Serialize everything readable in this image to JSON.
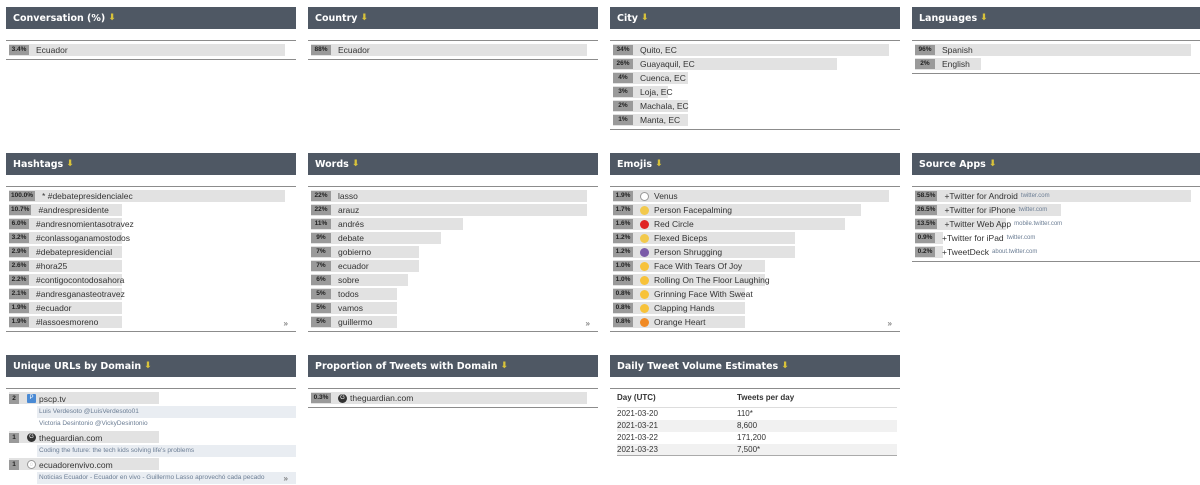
{
  "panels": {
    "conversation": {
      "title": "Conversation (%)",
      "rows": [
        {
          "pct": "3.4%",
          "label": "Ecuador",
          "fill": 1.0
        }
      ]
    },
    "country": {
      "title": "Country",
      "rows": [
        {
          "pct": "88%",
          "label": "Ecuador",
          "fill": 1.0
        }
      ]
    },
    "city": {
      "title": "City",
      "rows": [
        {
          "pct": "34%",
          "label": "Quito, EC",
          "fill": 1.0
        },
        {
          "pct": "26%",
          "label": "Guayaquil, EC",
          "fill": 0.81
        },
        {
          "pct": "4%",
          "label": "Cuenca, EC",
          "fill": 0.27
        },
        {
          "pct": "3%",
          "label": "Loja, EC",
          "fill": 0.2
        },
        {
          "pct": "2%",
          "label": "Machala, EC",
          "fill": 0.27
        },
        {
          "pct": "1%",
          "label": "Manta, EC",
          "fill": 0.27
        }
      ]
    },
    "languages": {
      "title": "Languages",
      "rows": [
        {
          "pct": "96%",
          "label": "Spanish",
          "fill": 1.0
        },
        {
          "pct": "2%",
          "label": "English",
          "fill": 0.24
        }
      ]
    },
    "hashtags": {
      "title": "Hashtags",
      "rows": [
        {
          "pct": "100.0%",
          "label": "* #debatepresidencialec",
          "fill": 1.0
        },
        {
          "pct": "10.7%",
          "label": "#andrespresidente",
          "fill": 0.41
        },
        {
          "pct": "6.0%",
          "label": "#andresnomientasotravez",
          "fill": 0.41
        },
        {
          "pct": "3.2%",
          "label": "#conlassoganamostodos",
          "fill": 0.41
        },
        {
          "pct": "2.9%",
          "label": "#debatepresidencial",
          "fill": 0.41
        },
        {
          "pct": "2.6%",
          "label": "#hora25",
          "fill": 0.41
        },
        {
          "pct": "2.2%",
          "label": "#contigocontodosahora",
          "fill": 0.41
        },
        {
          "pct": "2.1%",
          "label": "#andresganasteotravez",
          "fill": 0.41
        },
        {
          "pct": "1.9%",
          "label": "#ecuador",
          "fill": 0.41
        },
        {
          "pct": "1.9%",
          "label": "#lassoesmoreno",
          "fill": 0.41
        }
      ]
    },
    "words": {
      "title": "Words",
      "rows": [
        {
          "pct": "22%",
          "label": "lasso",
          "fill": 1.0
        },
        {
          "pct": "22%",
          "label": "arauz",
          "fill": 1.0
        },
        {
          "pct": "11%",
          "label": "andrés",
          "fill": 0.55
        },
        {
          "pct": "9%",
          "label": "debate",
          "fill": 0.47
        },
        {
          "pct": "7%",
          "label": "gobierno",
          "fill": 0.39
        },
        {
          "pct": "7%",
          "label": "ecuador",
          "fill": 0.39
        },
        {
          "pct": "6%",
          "label": "sobre",
          "fill": 0.35
        },
        {
          "pct": "5%",
          "label": "todos",
          "fill": 0.31
        },
        {
          "pct": "5%",
          "label": "vamos",
          "fill": 0.31
        },
        {
          "pct": "5%",
          "label": "guillermo",
          "fill": 0.31
        }
      ]
    },
    "emojis": {
      "title": "Emojis",
      "rows": [
        {
          "pct": "1.9%",
          "label": "Venus",
          "fill": 1.0,
          "emoji_color": "#ffffff",
          "emoji_glyph": "♀"
        },
        {
          "pct": "1.7%",
          "label": "Person Facepalming",
          "fill": 0.9,
          "emoji_color": "#f2c94c",
          "emoji_glyph": ""
        },
        {
          "pct": "1.6%",
          "label": "Red Circle",
          "fill": 0.84,
          "emoji_color": "#e02424",
          "emoji_glyph": ""
        },
        {
          "pct": "1.2%",
          "label": "Flexed Biceps",
          "fill": 0.66,
          "emoji_color": "#f2c94c",
          "emoji_glyph": ""
        },
        {
          "pct": "1.2%",
          "label": "Person Shrugging",
          "fill": 0.66,
          "emoji_color": "#7a5aa8",
          "emoji_glyph": ""
        },
        {
          "pct": "1.0%",
          "label": "Face With Tears Of Joy",
          "fill": 0.55,
          "emoji_color": "#f7c23a",
          "emoji_glyph": ""
        },
        {
          "pct": "1.0%",
          "label": "Rolling On The Floor Laughing",
          "fill": 0.55,
          "emoji_color": "#f7c23a",
          "emoji_glyph": ""
        },
        {
          "pct": "0.8%",
          "label": "Grinning Face With Sweat",
          "fill": 0.48,
          "emoji_color": "#f7c23a",
          "emoji_glyph": ""
        },
        {
          "pct": "0.8%",
          "label": "Clapping Hands",
          "fill": 0.48,
          "emoji_color": "#f7c23a",
          "emoji_glyph": ""
        },
        {
          "pct": "0.8%",
          "label": "Orange Heart",
          "fill": 0.48,
          "emoji_color": "#f08a24",
          "emoji_glyph": ""
        }
      ]
    },
    "source_apps": {
      "title": "Source Apps",
      "rows": [
        {
          "pct": "58.5%",
          "label": "+Twitter for Android",
          "host": "twitter.com",
          "fill": 1.0
        },
        {
          "pct": "26.5%",
          "label": "+Twitter for iPhone",
          "host": "twitter.com",
          "fill": 0.53
        },
        {
          "pct": "13.5%",
          "label": "+Twitter Web App",
          "host": "mobile.twitter.com",
          "fill": 0.33
        },
        {
          "pct": "0.9%",
          "label": "+Twitter for iPad",
          "host": "twitter.com",
          "fill": 0.1
        },
        {
          "pct": "0.2%",
          "label": "+TweetDeck",
          "host": "about.twitter.com",
          "fill": 0.1
        }
      ]
    },
    "unique_urls": {
      "title": "Unique URLs by Domain",
      "items": [
        {
          "count": "2",
          "domain": "pscp.tv",
          "favicon": "sq",
          "subs": [
            "Luis Verdesoto @LuisVerdesoto01",
            "Victoria Desintonio @VickyDesintonio"
          ]
        },
        {
          "count": "1",
          "domain": "theguardian.com",
          "favicon": "dark",
          "subs": [
            "Coding the future: the tech kids solving life's problems"
          ]
        },
        {
          "count": "1",
          "domain": "ecuadorenvivo.com",
          "favicon": "ring",
          "subs": [
            "Noticias Ecuador - Ecuador en vivo - Guillermo Lasso aprovechó cada pecado"
          ]
        }
      ]
    },
    "proportion": {
      "title": "Proportion of Tweets with Domain",
      "rows": [
        {
          "pct": "0.3%",
          "label": "theguardian.com",
          "fill": 1.0
        }
      ]
    },
    "daily": {
      "title": "Daily Tweet Volume Estimates",
      "col_day": "Day (UTC)",
      "col_tweets": "Tweets per day",
      "rows": [
        {
          "day": "2021-03-20",
          "tweets": "110*"
        },
        {
          "day": "2021-03-21",
          "tweets": "8,600"
        },
        {
          "day": "2021-03-22",
          "tweets": "171,200"
        },
        {
          "day": "2021-03-23",
          "tweets": "7,500*"
        }
      ]
    }
  },
  "icons": {
    "download": "download-icon",
    "more": "chevron-double-down-icon"
  },
  "colors": {
    "header_bg": "#4f5864",
    "bar_bg": "#e2e2e2",
    "pct_bg": "#9a9a9a",
    "accent": "#d8c23a"
  }
}
